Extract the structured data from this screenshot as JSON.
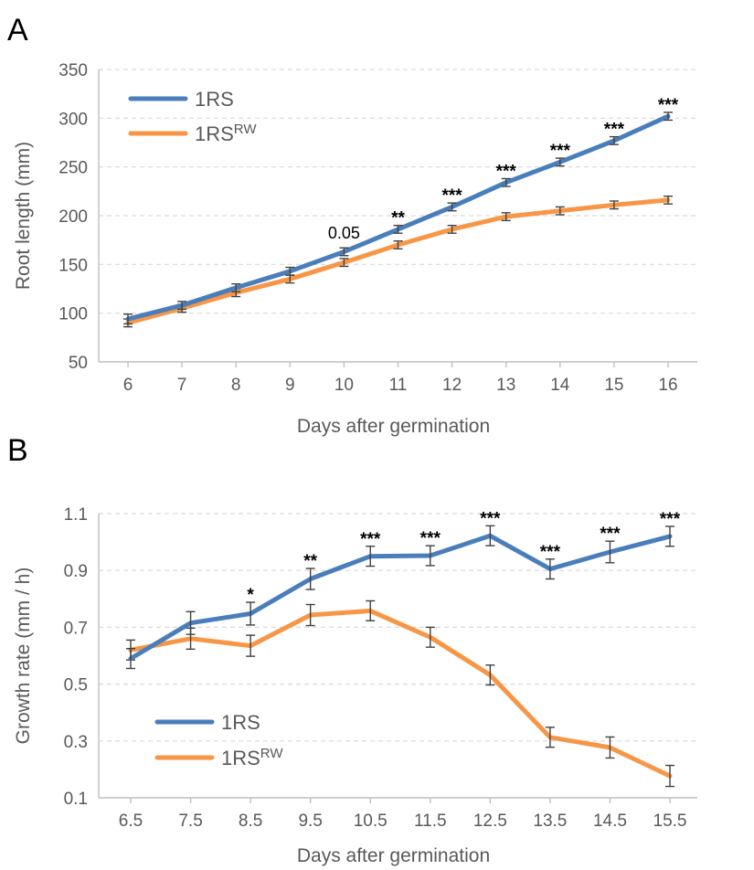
{
  "chart_data": [
    {
      "panel": "A",
      "type": "line",
      "xlabel": "Days after germination",
      "ylabel": "Root length (mm)",
      "ylim": [
        50,
        350
      ],
      "yticks": [
        "50",
        "100",
        "150",
        "200",
        "250",
        "300",
        "350"
      ],
      "x": [
        "6",
        "7",
        "8",
        "9",
        "10",
        "11",
        "12",
        "13",
        "14",
        "15",
        "16"
      ],
      "grid": true,
      "legend_position": "top-left",
      "series": [
        {
          "name": "1RS",
          "color": "#4a7ebb",
          "values": [
            94,
            108,
            126,
            143,
            163,
            186,
            209,
            234,
            255,
            277,
            302
          ],
          "errors": [
            5,
            4,
            4,
            4,
            4,
            4,
            4,
            4,
            4,
            4,
            4
          ]
        },
        {
          "name": "1RS",
          "name_sup": "RW",
          "color": "#f79646",
          "values": [
            90,
            105,
            121,
            135,
            152,
            170,
            186,
            199,
            205,
            211,
            216
          ],
          "errors": [
            4,
            4,
            4,
            4,
            4,
            4,
            4,
            4,
            4,
            4,
            4
          ]
        }
      ],
      "annotations": [
        "",
        "",
        "",
        "",
        "0.05",
        "**",
        "***",
        "***",
        "***",
        "***",
        "***"
      ]
    },
    {
      "panel": "B",
      "type": "line",
      "xlabel": "Days after germination",
      "ylabel": "Growth rate (mm / h)",
      "ylim": [
        0.1,
        1.1
      ],
      "yticks": [
        "0.1",
        "0.3",
        "0.5",
        "0.7",
        "0.9",
        "1.1"
      ],
      "x": [
        "6.5",
        "7.5",
        "8.5",
        "9.5",
        "10.5",
        "11.5",
        "12.5",
        "13.5",
        "14.5",
        "15.5"
      ],
      "grid": true,
      "legend_position": "bottom-left",
      "series": [
        {
          "name": "1RS",
          "color": "#4a7ebb",
          "values": [
            0.59,
            0.715,
            0.748,
            0.87,
            0.95,
            0.952,
            1.022,
            0.905,
            0.965,
            1.02
          ],
          "errors": [
            0.035,
            0.04,
            0.04,
            0.037,
            0.035,
            0.035,
            0.035,
            0.035,
            0.038,
            0.035
          ]
        },
        {
          "name": "1RS",
          "name_sup": "RW",
          "color": "#f79646",
          "values": [
            0.62,
            0.66,
            0.635,
            0.743,
            0.758,
            0.665,
            0.532,
            0.313,
            0.277,
            0.177
          ],
          "errors": [
            0.035,
            0.037,
            0.037,
            0.037,
            0.035,
            0.035,
            0.035,
            0.035,
            0.037,
            0.037
          ]
        }
      ],
      "annotations": [
        "",
        "",
        "*",
        "**",
        "***",
        "***",
        "***",
        "***",
        "***",
        "***"
      ]
    }
  ]
}
